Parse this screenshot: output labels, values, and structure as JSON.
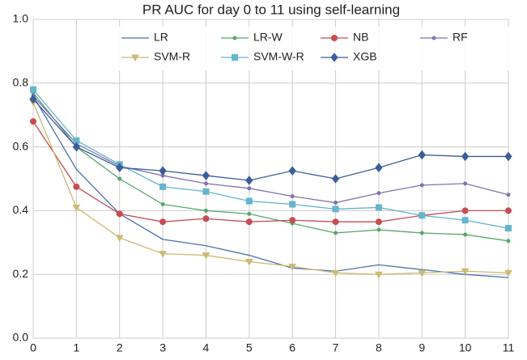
{
  "chart_data": {
    "type": "line",
    "title": "PR AUC for day 0 to 11 using self-learning",
    "x": [
      0,
      1,
      2,
      3,
      4,
      5,
      6,
      7,
      8,
      9,
      10,
      11
    ],
    "xlim": [
      0,
      11
    ],
    "xticks": [
      0,
      1,
      2,
      3,
      4,
      5,
      6,
      7,
      8,
      9,
      10,
      11
    ],
    "ylim": [
      0,
      1
    ],
    "yticks": [
      {
        "value": 0,
        "label": "0.0"
      },
      {
        "value": 0.2,
        "label": "0.2"
      },
      {
        "value": 0.4,
        "label": "0.4"
      },
      {
        "value": 0.6,
        "label": "0.6"
      },
      {
        "value": 0.8,
        "label": "0.8"
      },
      {
        "value": 1,
        "label": "1.0"
      }
    ],
    "grid": true,
    "legend": "upper center",
    "series": [
      {
        "name": "LR",
        "color": "#4c72b0",
        "marker": "none",
        "values": [
          0.76,
          0.53,
          0.39,
          0.31,
          0.29,
          0.26,
          0.22,
          0.21,
          0.23,
          0.215,
          0.2,
          0.19
        ]
      },
      {
        "name": "LR-W",
        "color": "#55a868",
        "marker": "dot",
        "values": [
          0.77,
          0.6,
          0.5,
          0.42,
          0.4,
          0.39,
          0.36,
          0.33,
          0.34,
          0.33,
          0.325,
          0.305
        ]
      },
      {
        "name": "NB",
        "color": "#c44e52",
        "marker": "circle",
        "values": [
          0.68,
          0.475,
          0.39,
          0.365,
          0.375,
          0.365,
          0.37,
          0.365,
          0.365,
          0.385,
          0.4,
          0.4
        ]
      },
      {
        "name": "RF",
        "color": "#8172b2",
        "marker": "dot",
        "values": [
          0.76,
          0.61,
          0.54,
          0.51,
          0.485,
          0.47,
          0.445,
          0.425,
          0.455,
          0.48,
          0.485,
          0.45
        ]
      },
      {
        "name": "SVM-R",
        "color": "#ccb974",
        "marker": "triangle",
        "values": [
          0.74,
          0.41,
          0.315,
          0.265,
          0.26,
          0.24,
          0.225,
          0.205,
          0.2,
          0.205,
          0.21,
          0.205
        ]
      },
      {
        "name": "SVM-W-R",
        "color": "#64b5cd",
        "marker": "square",
        "values": [
          0.78,
          0.62,
          0.545,
          0.475,
          0.46,
          0.43,
          0.42,
          0.405,
          0.41,
          0.385,
          0.37,
          0.345
        ]
      },
      {
        "name": "XGB",
        "color": "#3b5d9a",
        "marker": "diamond",
        "values": [
          0.75,
          0.6,
          0.535,
          0.525,
          0.51,
          0.495,
          0.525,
          0.5,
          0.535,
          0.575,
          0.57,
          0.57
        ]
      }
    ]
  }
}
